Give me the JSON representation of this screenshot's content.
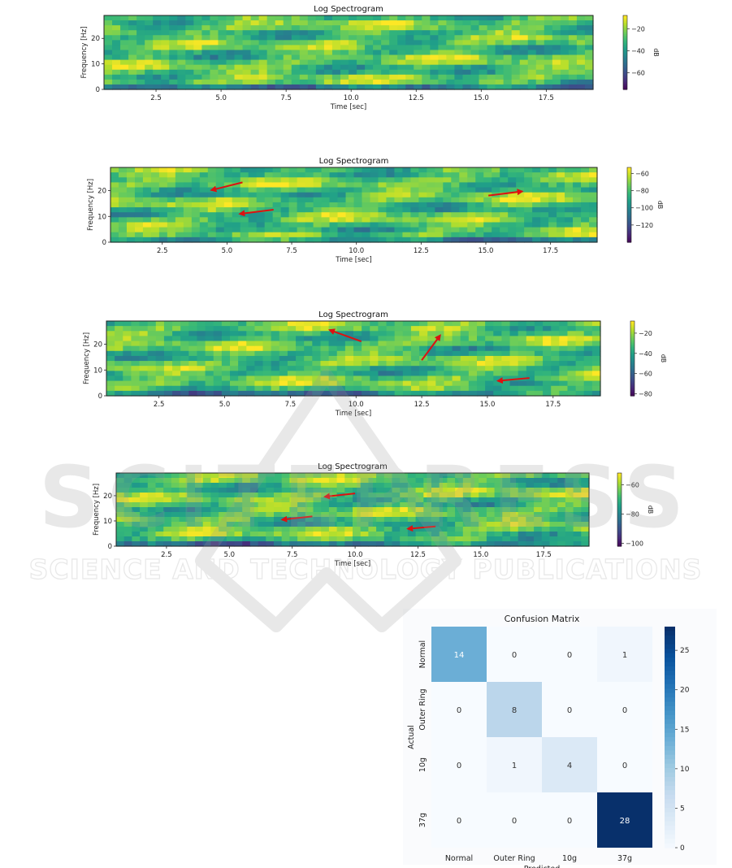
{
  "chart_data": [
    {
      "type": "heatmap",
      "title": "Log Spectrogram",
      "xlabel": "Time [sec]",
      "ylabel": "Frequency [Hz]",
      "xticks": [
        "2.5",
        "5.0",
        "7.5",
        "10.0",
        "12.5",
        "15.0",
        "17.5"
      ],
      "xtick_values": [
        2.5,
        5.0,
        7.5,
        10.0,
        12.5,
        15.0,
        17.5
      ],
      "yticks": [
        "0",
        "10",
        "20"
      ],
      "ytick_values": [
        0,
        10,
        20
      ],
      "xlim": [
        0.5,
        19.3
      ],
      "ylim": [
        0,
        29
      ],
      "colorbar": {
        "label": "dB",
        "ticks": [
          "−20",
          "−40",
          "−60"
        ],
        "tick_values": [
          -20,
          -40,
          -60
        ],
        "range": [
          -75,
          -8
        ]
      },
      "colormap": "viridis",
      "arrows": [],
      "seed": 3
    },
    {
      "type": "heatmap",
      "title": "Log Spectrogram",
      "xlabel": "Time [sec]",
      "ylabel": "Frequency [Hz]",
      "xticks": [
        "2.5",
        "5.0",
        "7.5",
        "10.0",
        "12.5",
        "15.0",
        "17.5"
      ],
      "xtick_values": [
        2.5,
        5.0,
        7.5,
        10.0,
        12.5,
        15.0,
        17.5
      ],
      "yticks": [
        "0",
        "10",
        "20"
      ],
      "ytick_values": [
        0,
        10,
        20
      ],
      "xlim": [
        0.5,
        19.3
      ],
      "ylim": [
        0,
        29
      ],
      "colorbar": {
        "label": "dB",
        "ticks": [
          "−60",
          "−80",
          "−100",
          "−120"
        ],
        "tick_values": [
          -60,
          -80,
          -100,
          -120
        ],
        "range": [
          -140,
          -53
        ]
      },
      "colormap": "viridis",
      "arrows": [
        {
          "from": [
            5.6,
            23.2
          ],
          "to": [
            4.4,
            20.2
          ]
        },
        {
          "from": [
            6.8,
            12.6
          ],
          "to": [
            5.5,
            11.0
          ]
        },
        {
          "from": [
            15.1,
            18.1
          ],
          "to": [
            16.4,
            19.7
          ]
        }
      ],
      "seed": 11
    },
    {
      "type": "heatmap",
      "title": "Log Spectrogram",
      "xlabel": "Time [sec]",
      "ylabel": "Frequency [Hz]",
      "xticks": [
        "2.5",
        "5.0",
        "7.5",
        "10.0",
        "12.5",
        "15.0",
        "17.5"
      ],
      "xtick_values": [
        2.5,
        5.0,
        7.5,
        10.0,
        12.5,
        15.0,
        17.5
      ],
      "yticks": [
        "0",
        "10",
        "20"
      ],
      "ytick_values": [
        0,
        10,
        20
      ],
      "xlim": [
        0.5,
        19.3
      ],
      "ylim": [
        0,
        29
      ],
      "colorbar": {
        "label": "dB",
        "ticks": [
          "−20",
          "−40",
          "−60",
          "−80"
        ],
        "tick_values": [
          -20,
          -40,
          -60,
          -80
        ],
        "range": [
          -82,
          -8
        ]
      },
      "colormap": "viridis",
      "arrows": [
        {
          "from": [
            10.2,
            21.1
          ],
          "to": [
            9.0,
            25.5
          ]
        },
        {
          "from": [
            12.5,
            13.8
          ],
          "to": [
            13.2,
            23.4
          ]
        },
        {
          "from": [
            16.6,
            6.9
          ],
          "to": [
            15.4,
            5.8
          ]
        }
      ],
      "seed": 23
    },
    {
      "type": "heatmap",
      "title": "Log Spectrogram",
      "xlabel": "Time [sec]",
      "ylabel": "Frequency [Hz]",
      "xticks": [
        "2.5",
        "5.0",
        "7.5",
        "10.0",
        "12.5",
        "15.0",
        "17.5"
      ],
      "xtick_values": [
        2.5,
        5.0,
        7.5,
        10.0,
        12.5,
        15.0,
        17.5
      ],
      "yticks": [
        "0",
        "10",
        "20"
      ],
      "ytick_values": [
        0,
        10,
        20
      ],
      "xlim": [
        0.5,
        19.3
      ],
      "ylim": [
        0,
        29
      ],
      "colorbar": {
        "label": "dB",
        "ticks": [
          "−60",
          "−80",
          "−100"
        ],
        "tick_values": [
          -60,
          -80,
          -100
        ],
        "range": [
          -102,
          -52
        ]
      },
      "colormap": "viridis",
      "arrows": [
        {
          "from": [
            10.0,
            20.9
          ],
          "to": [
            8.8,
            19.6
          ]
        },
        {
          "from": [
            8.3,
            11.8
          ],
          "to": [
            7.1,
            10.5
          ]
        },
        {
          "from": [
            13.2,
            7.8
          ],
          "to": [
            12.1,
            6.9
          ]
        }
      ],
      "seed": 37
    },
    {
      "type": "heatmap",
      "title": "Confusion Matrix",
      "xlabel": "Predicted",
      "ylabel": "Actual",
      "categories_x": [
        "Normal",
        "Outer Ring",
        "10g",
        "37g"
      ],
      "categories_y": [
        "Normal",
        "Outer Ring",
        "10g",
        "37g"
      ],
      "values": [
        [
          14,
          0,
          0,
          1
        ],
        [
          0,
          8,
          0,
          0
        ],
        [
          0,
          1,
          4,
          0
        ],
        [
          0,
          0,
          0,
          28
        ]
      ],
      "colormap": "Blues",
      "colorbar": {
        "ticks": [
          "0",
          "5",
          "10",
          "15",
          "20",
          "25"
        ],
        "tick_values": [
          0,
          5,
          10,
          15,
          20,
          25
        ],
        "range": [
          0,
          28
        ]
      }
    }
  ],
  "watermark": {
    "brand": "SCITEPRESS",
    "tagline": "SCIENCE AND TECHNOLOGY PUBLICATIONS"
  },
  "colors": {
    "arrow": "#dd1111",
    "watermark": "#bdbdbd"
  }
}
